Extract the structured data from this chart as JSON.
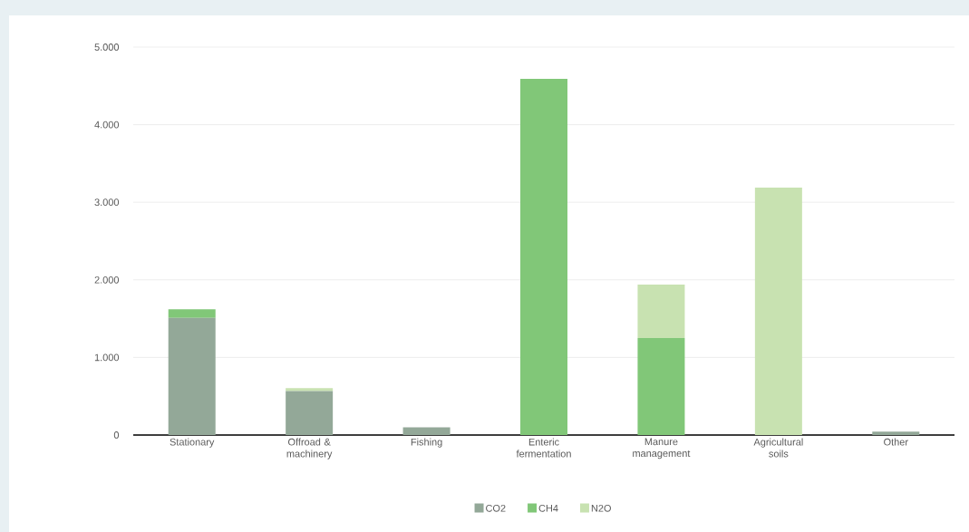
{
  "chart_data": {
    "type": "bar",
    "stacked": true,
    "categories": [
      "Stationary",
      "Offroad & machinery",
      "Fishing",
      "Enteric fermentation",
      "Manure management",
      "Agricultural soils",
      "Other"
    ],
    "series": [
      {
        "name": "CO2",
        "color": "#93a898",
        "values": [
          1510,
          565,
          100,
          0,
          0,
          0,
          45
        ]
      },
      {
        "name": "CH4",
        "color": "#81c778",
        "values": [
          110,
          0,
          0,
          4590,
          1250,
          0,
          0
        ]
      },
      {
        "name": "N2O",
        "color": "#c8e2b1",
        "values": [
          0,
          40,
          0,
          0,
          690,
          3190,
          0
        ]
      }
    ],
    "ylim": [
      0,
      5000
    ],
    "yticks": [
      {
        "value": 0,
        "label": "0"
      },
      {
        "value": 1000,
        "label": "1.000"
      },
      {
        "value": 2000,
        "label": "2.000"
      },
      {
        "value": 3000,
        "label": "3.000"
      },
      {
        "value": 4000,
        "label": "4.000"
      },
      {
        "value": 5000,
        "label": "5.000"
      }
    ],
    "grid": "y",
    "legend": "bottom"
  }
}
